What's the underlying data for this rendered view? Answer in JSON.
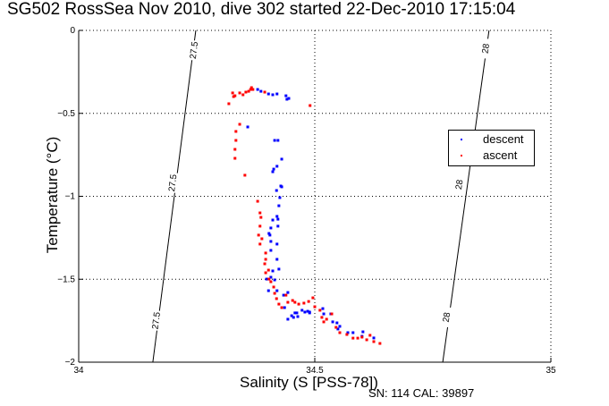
{
  "chart_data": {
    "type": "scatter",
    "title": "SG502 RossSea Nov 2010, dive 302 started 22-Dec-2010 17:15:04",
    "xlabel": "Salinity (S [PSS-78])",
    "ylabel": "Temperature (°C)",
    "xlim": [
      34,
      35
    ],
    "ylim": [
      -2,
      0
    ],
    "xticks": [
      34,
      34.5,
      35
    ],
    "xtick_labels": [
      "34",
      "34.5",
      "35"
    ],
    "yticks": [
      0,
      -0.5,
      -1,
      -1.5,
      -2
    ],
    "ytick_labels": [
      "0",
      "-0.5",
      "-1",
      "-1.5",
      "-2"
    ],
    "grid": true,
    "legend_position": "right",
    "footer": "SN: 114  CAL: 39897",
    "isopycnals": [
      {
        "label": "27.5",
        "points": [
          [
            34.157,
            -2
          ],
          [
            34.248,
            0
          ]
        ],
        "label_positions": [
          [
            34.245,
            -0.12
          ],
          [
            34.2,
            -0.92
          ],
          [
            34.165,
            -1.75
          ]
        ]
      },
      {
        "label": "28",
        "points": [
          [
            34.771,
            -2
          ],
          [
            34.869,
            0
          ]
        ],
        "label_positions": [
          [
            34.863,
            -0.11
          ],
          [
            34.807,
            -0.93
          ],
          [
            34.78,
            -1.73
          ]
        ]
      }
    ],
    "series": [
      {
        "name": "descent",
        "color": "#0000ff",
        "points": [
          [
            34.379,
            -0.356
          ],
          [
            34.386,
            -0.367
          ],
          [
            34.402,
            -0.383
          ],
          [
            34.411,
            -0.388
          ],
          [
            34.439,
            -0.394
          ],
          [
            34.42,
            -0.383
          ],
          [
            34.445,
            -0.41
          ],
          [
            34.441,
            -0.415
          ],
          [
            34.358,
            -0.582
          ],
          [
            34.415,
            -0.663
          ],
          [
            34.422,
            -0.663
          ],
          [
            34.43,
            -0.776
          ],
          [
            34.42,
            -0.819
          ],
          [
            34.413,
            -0.836
          ],
          [
            34.411,
            -0.852
          ],
          [
            34.428,
            -0.938
          ],
          [
            34.43,
            -0.943
          ],
          [
            34.419,
            -0.965
          ],
          [
            34.426,
            -1.008
          ],
          [
            34.424,
            -1.057
          ],
          [
            34.42,
            -1.121
          ],
          [
            34.422,
            -1.138
          ],
          [
            34.411,
            -1.143
          ],
          [
            34.407,
            -1.191
          ],
          [
            34.403,
            -1.224
          ],
          [
            34.405,
            -1.234
          ],
          [
            34.422,
            -1.18
          ],
          [
            34.407,
            -1.272
          ],
          [
            34.42,
            -1.288
          ],
          [
            34.407,
            -1.326
          ],
          [
            34.42,
            -1.38
          ],
          [
            34.424,
            -1.439
          ],
          [
            34.411,
            -1.45
          ],
          [
            34.415,
            -1.504
          ],
          [
            34.407,
            -1.488
          ],
          [
            34.398,
            -1.499
          ],
          [
            34.42,
            -1.569
          ],
          [
            34.434,
            -1.596
          ],
          [
            34.443,
            -1.58
          ],
          [
            34.402,
            -1.569
          ],
          [
            34.436,
            -1.671
          ],
          [
            34.443,
            -1.741
          ],
          [
            34.455,
            -1.73
          ],
          [
            34.464,
            -1.725
          ],
          [
            34.473,
            -1.687
          ],
          [
            34.485,
            -1.693
          ],
          [
            34.458,
            -1.703
          ],
          [
            34.489,
            -1.703
          ],
          [
            34.451,
            -1.72
          ],
          [
            34.462,
            -1.703
          ],
          [
            34.479,
            -1.698
          ],
          [
            34.489,
            -1.698
          ],
          [
            34.5,
            -1.666
          ],
          [
            34.517,
            -1.677
          ],
          [
            34.519,
            -1.709
          ],
          [
            34.534,
            -1.709
          ],
          [
            34.547,
            -1.763
          ],
          [
            34.538,
            -1.757
          ],
          [
            34.553,
            -1.784
          ],
          [
            34.549,
            -1.8
          ],
          [
            34.57,
            -1.822
          ],
          [
            34.581,
            -1.822
          ],
          [
            34.6,
            -1.844
          ],
          [
            34.602,
            -1.817
          ],
          [
            34.625,
            -1.854
          ]
        ]
      },
      {
        "name": "ascent",
        "color": "#ff0000",
        "points": [
          [
            34.326,
            -0.377
          ],
          [
            34.331,
            -0.394
          ],
          [
            34.328,
            -0.399
          ],
          [
            34.341,
            -0.377
          ],
          [
            34.348,
            -0.388
          ],
          [
            34.354,
            -0.372
          ],
          [
            34.36,
            -0.367
          ],
          [
            34.364,
            -0.356
          ],
          [
            34.366,
            -0.345
          ],
          [
            34.369,
            -0.356
          ],
          [
            34.394,
            -0.372
          ],
          [
            34.318,
            -0.442
          ],
          [
            34.49,
            -0.453
          ],
          [
            34.341,
            -0.566
          ],
          [
            34.333,
            -0.609
          ],
          [
            34.333,
            -0.663
          ],
          [
            34.331,
            -0.717
          ],
          [
            34.331,
            -0.771
          ],
          [
            34.352,
            -0.873
          ],
          [
            34.379,
            -1.03
          ],
          [
            34.384,
            -1.1
          ],
          [
            34.386,
            -1.127
          ],
          [
            34.384,
            -1.18
          ],
          [
            34.381,
            -1.234
          ],
          [
            34.388,
            -1.256
          ],
          [
            34.384,
            -1.288
          ],
          [
            34.396,
            -1.342
          ],
          [
            34.394,
            -1.407
          ],
          [
            34.396,
            -1.38
          ],
          [
            34.402,
            -1.445
          ],
          [
            34.396,
            -1.461
          ],
          [
            34.403,
            -1.499
          ],
          [
            34.407,
            -1.515
          ],
          [
            34.413,
            -1.547
          ],
          [
            34.415,
            -1.585
          ],
          [
            34.419,
            -1.617
          ],
          [
            34.424,
            -1.65
          ],
          [
            34.43,
            -1.671
          ],
          [
            34.443,
            -1.639
          ],
          [
            34.453,
            -1.628
          ],
          [
            34.439,
            -1.596
          ],
          [
            34.458,
            -1.639
          ],
          [
            34.466,
            -1.65
          ],
          [
            34.477,
            -1.644
          ],
          [
            34.487,
            -1.634
          ],
          [
            34.496,
            -1.612
          ],
          [
            34.5,
            -1.666
          ],
          [
            34.511,
            -1.687
          ],
          [
            34.515,
            -1.73
          ],
          [
            34.519,
            -1.757
          ],
          [
            34.525,
            -1.741
          ],
          [
            34.536,
            -1.709
          ],
          [
            34.545,
            -1.79
          ],
          [
            34.553,
            -1.822
          ],
          [
            34.568,
            -1.833
          ],
          [
            34.581,
            -1.855
          ],
          [
            34.591,
            -1.855
          ],
          [
            34.6,
            -1.849
          ],
          [
            34.61,
            -1.865
          ],
          [
            34.617,
            -1.838
          ],
          [
            34.625,
            -1.876
          ],
          [
            34.638,
            -1.887
          ]
        ]
      }
    ]
  }
}
